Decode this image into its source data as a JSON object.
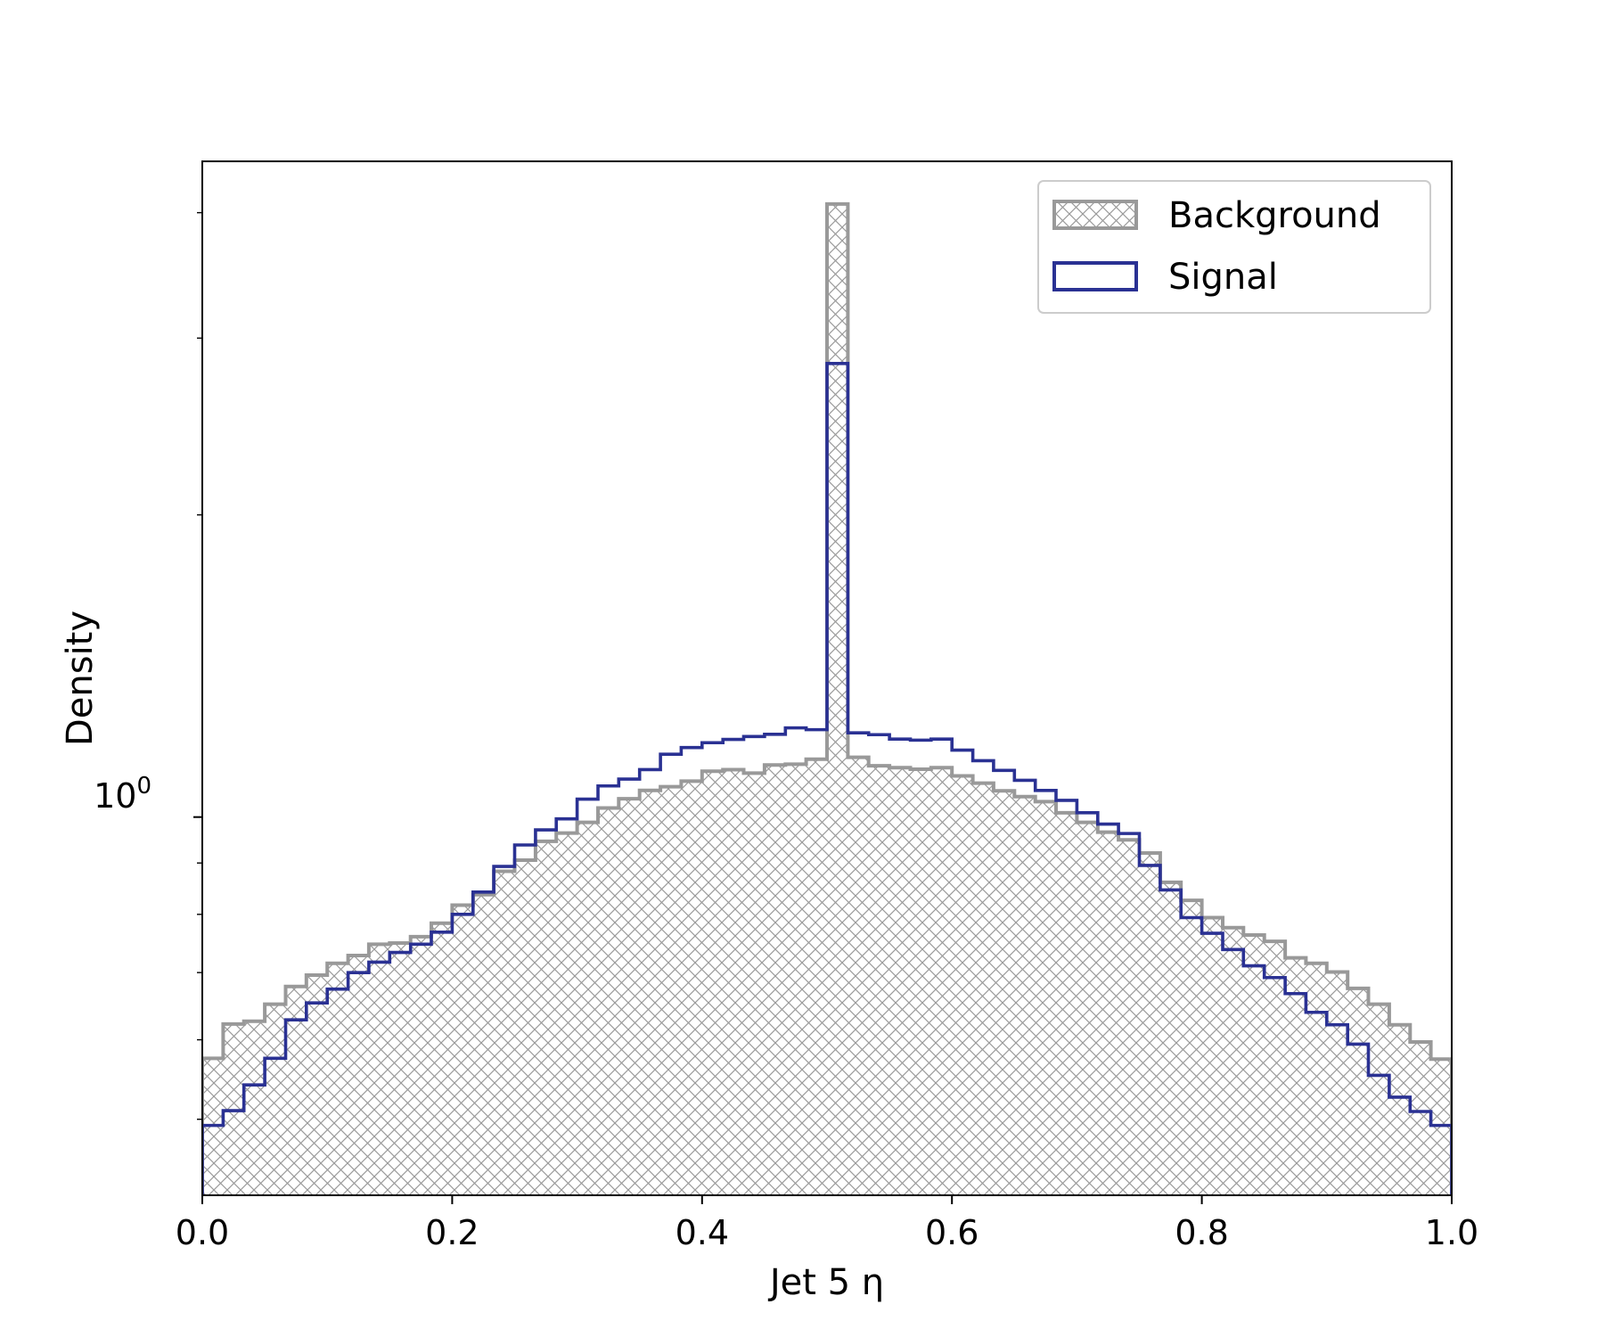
{
  "chart_data": {
    "type": "histogram",
    "xlabel": "Jet 5 η",
    "ylabel": "Density",
    "xlim": [
      0.0,
      1.0
    ],
    "ylim": [
      0.42,
      4.5
    ],
    "yscale": "log",
    "xticks": [
      "0.0",
      "0.2",
      "0.4",
      "0.6",
      "0.8",
      "1.0"
    ],
    "ytick_major_label": "10",
    "ytick_major_exp": "0",
    "legend_position": "upper right",
    "bin_edges": [
      0.0,
      0.0167,
      0.0333,
      0.05,
      0.0667,
      0.0833,
      0.1,
      0.1167,
      0.1333,
      0.15,
      0.1667,
      0.1833,
      0.2,
      0.2167,
      0.2333,
      0.25,
      0.2667,
      0.2833,
      0.3,
      0.3167,
      0.3333,
      0.35,
      0.3667,
      0.3833,
      0.4,
      0.4167,
      0.4333,
      0.45,
      0.4667,
      0.4833,
      0.5,
      0.5167,
      0.5333,
      0.55,
      0.5667,
      0.5833,
      0.6,
      0.6167,
      0.6333,
      0.65,
      0.6667,
      0.6833,
      0.7,
      0.7167,
      0.7333,
      0.75,
      0.7667,
      0.7833,
      0.8,
      0.8167,
      0.8333,
      0.85,
      0.8667,
      0.8833,
      0.9,
      0.9167,
      0.9333,
      0.95,
      0.9667,
      0.9833,
      1.0
    ],
    "series": [
      {
        "name": "Background",
        "style": "hatched-step-filled",
        "color": "#999999",
        "values": [
          0.575,
          0.622,
          0.626,
          0.651,
          0.678,
          0.696,
          0.715,
          0.728,
          0.747,
          0.749,
          0.76,
          0.784,
          0.817,
          0.837,
          0.883,
          0.906,
          0.946,
          0.964,
          0.988,
          1.021,
          1.043,
          1.063,
          1.072,
          1.086,
          1.111,
          1.115,
          1.106,
          1.127,
          1.129,
          1.142,
          4.08,
          1.147,
          1.125,
          1.12,
          1.116,
          1.12,
          1.099,
          1.081,
          1.062,
          1.048,
          1.036,
          1.01,
          0.988,
          0.966,
          0.949,
          0.921,
          0.861,
          0.826,
          0.794,
          0.776,
          0.763,
          0.752,
          0.724,
          0.715,
          0.701,
          0.675,
          0.651,
          0.621,
          0.597,
          0.574
        ]
      },
      {
        "name": "Signal",
        "style": "step-outline",
        "color": "#2a3193",
        "values": [
          0.493,
          0.51,
          0.541,
          0.575,
          0.628,
          0.653,
          0.674,
          0.7,
          0.717,
          0.733,
          0.747,
          0.768,
          0.8,
          0.842,
          0.893,
          0.938,
          0.971,
          0.996,
          1.042,
          1.074,
          1.091,
          1.115,
          1.155,
          1.173,
          1.186,
          1.195,
          1.203,
          1.209,
          1.227,
          1.222,
          2.83,
          1.213,
          1.208,
          1.196,
          1.193,
          1.196,
          1.166,
          1.138,
          1.113,
          1.088,
          1.063,
          1.039,
          1.01,
          0.984,
          0.963,
          0.895,
          0.846,
          0.794,
          0.766,
          0.738,
          0.711,
          0.692,
          0.667,
          0.639,
          0.621,
          0.594,
          0.553,
          0.526,
          0.509,
          0.493
        ]
      }
    ]
  }
}
